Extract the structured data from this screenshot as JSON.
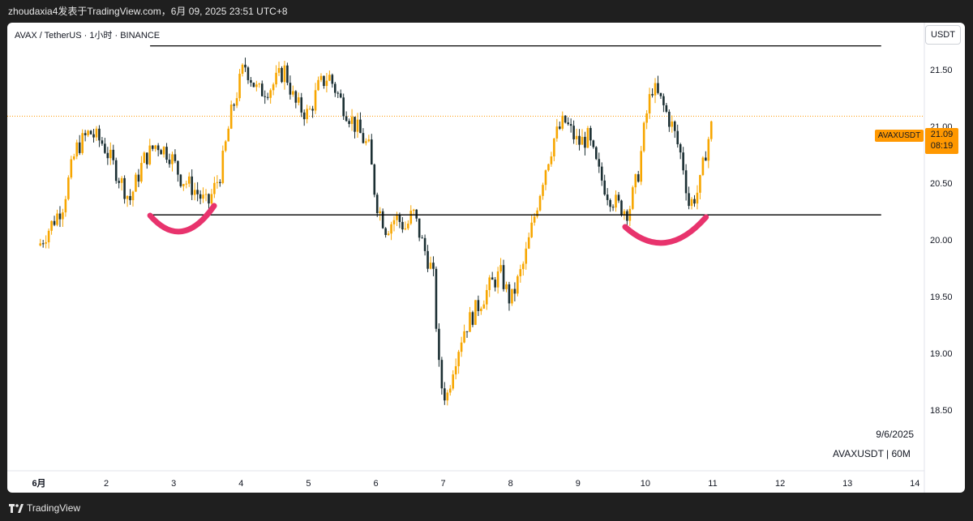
{
  "header": {
    "attribution": "zhoudaxia4发表于TradingView.com，6月 09, 2025 23:51 UTC+8"
  },
  "chart_header": {
    "symbol_line": "AVAX / TetherUS · 1小时 · BINANCE",
    "currency": "USDT"
  },
  "price_tags": {
    "symbol": "AVAXUSDT",
    "last_price": "21.09",
    "countdown": "08:19"
  },
  "watermark": {
    "date": "9/6/2025",
    "symbol_tf": "AVAXUSDT | 60M"
  },
  "footer": {
    "brand": "TradingView"
  },
  "colors": {
    "bull": "#f7a600",
    "bear": "#1b2f33",
    "accent": "#ff9800",
    "marker": "#e8336d",
    "level": "#000000"
  },
  "chart_data": {
    "type": "candlestick",
    "title": "",
    "xlabel": "",
    "ylabel": "",
    "x_ticks": [
      "6月",
      "2",
      "3",
      "4",
      "5",
      "6",
      "7",
      "8",
      "9",
      "10",
      "11",
      "12",
      "13",
      "14"
    ],
    "y_ticks": [
      "18.50",
      "19.00",
      "19.50",
      "20.00",
      "20.50",
      "21.00",
      "21.50"
    ],
    "y_tick_values": [
      18.5,
      19.0,
      19.5,
      20.0,
      20.5,
      21.0,
      21.5
    ],
    "ylim": [
      18.06,
      22.05
    ],
    "xlim": [
      0.0,
      13.0
    ],
    "last_price": 21.09,
    "anchors": [
      [
        0.0,
        19.95
      ],
      [
        0.35,
        20.3
      ],
      [
        0.55,
        20.8
      ],
      [
        0.75,
        20.95
      ],
      [
        0.95,
        20.85
      ],
      [
        1.15,
        20.6
      ],
      [
        1.35,
        20.35
      ],
      [
        1.55,
        20.7
      ],
      [
        1.75,
        20.85
      ],
      [
        1.95,
        20.75
      ],
      [
        2.1,
        20.55
      ],
      [
        2.3,
        20.45
      ],
      [
        2.5,
        20.3
      ],
      [
        2.7,
        20.6
      ],
      [
        2.85,
        21.1
      ],
      [
        3.05,
        21.55
      ],
      [
        3.25,
        21.3
      ],
      [
        3.45,
        21.35
      ],
      [
        3.65,
        21.5
      ],
      [
        3.8,
        21.2
      ],
      [
        4.0,
        21.1
      ],
      [
        4.15,
        21.35
      ],
      [
        4.3,
        21.45
      ],
      [
        4.5,
        21.2
      ],
      [
        4.7,
        21.0
      ],
      [
        4.9,
        20.8
      ],
      [
        5.0,
        20.35
      ],
      [
        5.15,
        20.1
      ],
      [
        5.3,
        20.2
      ],
      [
        5.45,
        20.1
      ],
      [
        5.55,
        20.25
      ],
      [
        5.7,
        19.95
      ],
      [
        5.85,
        19.7
      ],
      [
        5.95,
        18.75
      ],
      [
        6.05,
        18.6
      ],
      [
        6.15,
        18.9
      ],
      [
        6.3,
        19.2
      ],
      [
        6.5,
        19.4
      ],
      [
        6.7,
        19.6
      ],
      [
        6.85,
        19.7
      ],
      [
        7.0,
        19.45
      ],
      [
        7.2,
        19.8
      ],
      [
        7.35,
        20.2
      ],
      [
        7.5,
        20.6
      ],
      [
        7.65,
        20.9
      ],
      [
        7.8,
        21.05
      ],
      [
        8.0,
        20.85
      ],
      [
        8.15,
        20.9
      ],
      [
        8.3,
        20.6
      ],
      [
        8.45,
        20.4
      ],
      [
        8.6,
        20.3
      ],
      [
        8.75,
        20.25
      ],
      [
        8.9,
        20.6
      ],
      [
        9.0,
        21.05
      ],
      [
        9.1,
        21.35
      ],
      [
        9.25,
        21.2
      ],
      [
        9.4,
        21.0
      ],
      [
        9.55,
        20.7
      ],
      [
        9.65,
        20.3
      ],
      [
        9.8,
        20.45
      ],
      [
        9.9,
        20.8
      ],
      [
        10.0,
        21.05
      ]
    ],
    "levels": [
      {
        "price": 21.71,
        "from_x": 1.65,
        "to_x": 12.5
      },
      {
        "price": 20.22,
        "from_x": 1.65,
        "to_x": 12.5
      }
    ],
    "markers": [
      {
        "type": "smile-arc",
        "from_x": 1.65,
        "to_x": 2.6,
        "price_level": 20.2
      },
      {
        "type": "smile-arc",
        "from_x": 8.7,
        "to_x": 9.9,
        "price_level": 20.1
      }
    ],
    "grid": false,
    "legend": "none"
  }
}
